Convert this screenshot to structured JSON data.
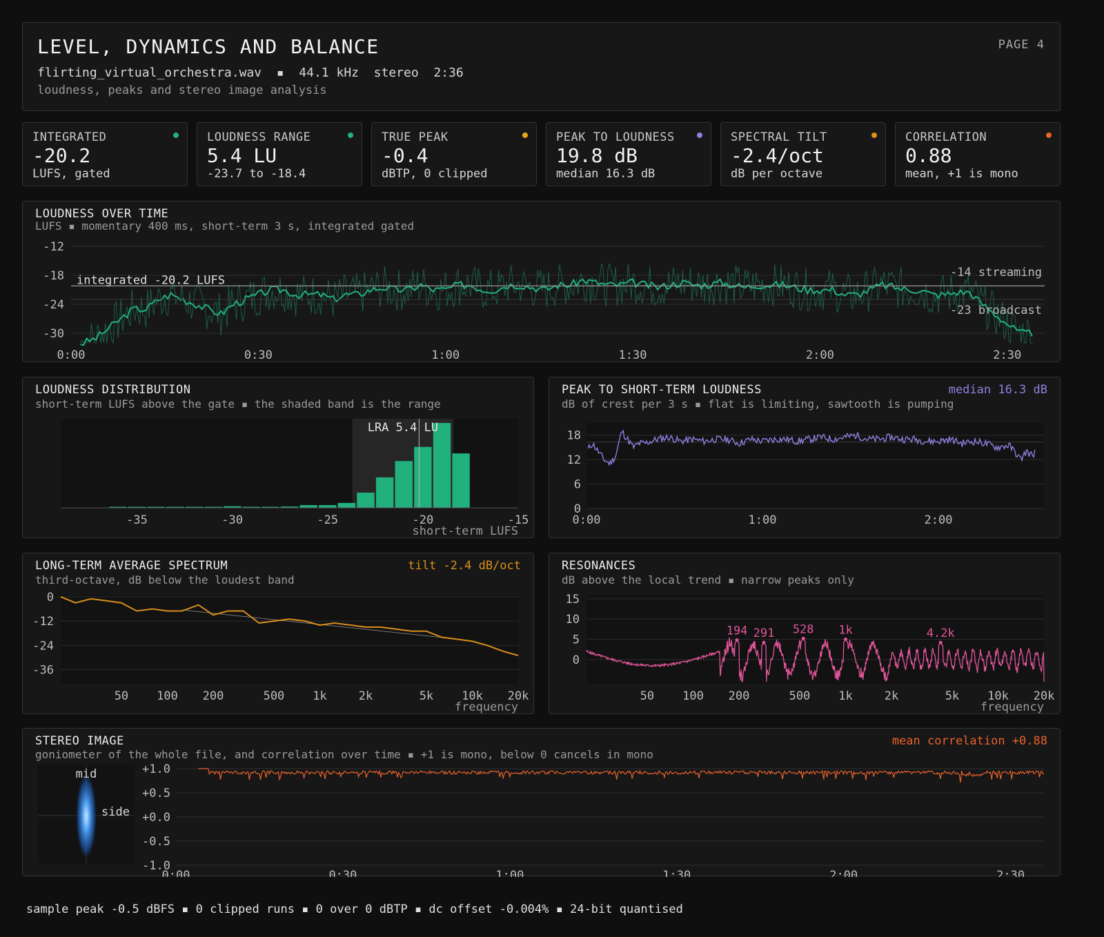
{
  "header": {
    "title": "LEVEL, DYNAMICS AND BALANCE",
    "file_line": "flirting_virtual_orchestra.wav  ▪  44.1 kHz  stereo  2:36",
    "subtitle": "loudness, peaks and stereo image analysis",
    "page": "PAGE 4"
  },
  "cards": [
    {
      "label": "INTEGRATED",
      "value": "-20.2",
      "note": "LUFS, gated",
      "color": "#22b07d"
    },
    {
      "label": "LOUDNESS RANGE",
      "value": "5.4 LU",
      "note": "-23.7 to -18.4",
      "color": "#22b07d"
    },
    {
      "label": "TRUE PEAK",
      "value": "-0.4",
      "note": "dBTP, 0 clipped",
      "color": "#e6a817"
    },
    {
      "label": "PEAK TO LOUDNESS",
      "value": "19.8 dB",
      "note": "median 16.3 dB",
      "color": "#8f80e0"
    },
    {
      "label": "SPECTRAL TILT",
      "value": "-2.4/oct",
      "note": "dB per octave",
      "color": "#d9901a"
    },
    {
      "label": "CORRELATION",
      "value": "0.88",
      "note": "mean, +1 is mono",
      "color": "#e8622c"
    }
  ],
  "panels": {
    "loudness_time": {
      "title": "LOUDNESS OVER TIME",
      "subtitle": "LUFS ▪ momentary 400 ms, short-term 3 s, integrated gated"
    },
    "distribution": {
      "title": "LOUDNESS DISTRIBUTION",
      "subtitle": "short-term LUFS above the gate ▪ the shaded band is the range"
    },
    "plr": {
      "title": "PEAK TO SHORT-TERM LOUDNESS",
      "subtitle": "dB of crest per 3 s ▪ flat is limiting, sawtooth is pumping",
      "right": "median 16.3 dB"
    },
    "ltas": {
      "title": "LONG-TERM AVERAGE SPECTRUM",
      "subtitle": "third-octave, dB below the loudest band",
      "right": "tilt -2.4 dB/oct"
    },
    "resonances": {
      "title": "RESONANCES",
      "subtitle": "dB above the local trend ▪ narrow peaks only"
    },
    "stereo": {
      "title": "STEREO IMAGE",
      "subtitle": "goniometer of the whole file, and correlation over time ▪ +1 is mono, below 0 cancels in mono",
      "right": "mean correlation +0.88"
    }
  },
  "colors": {
    "green": "#22b07d",
    "purple": "#8f80e0",
    "orange": "#d9901a",
    "pink": "#e0559a",
    "red": "#e8622c",
    "blue": "#3a8fe8"
  },
  "footer": "sample peak -0.5 dBFS ▪ 0 clipped runs ▪ 0 over 0 dBTP ▪ dc offset -0.004% ▪ 24-bit quantised",
  "chart_data": [
    {
      "id": "loudness_time",
      "type": "line",
      "xlim": [
        0,
        156
      ],
      "ylim": [
        -32,
        -11
      ],
      "x_ticks": [
        0,
        30,
        60,
        90,
        120,
        150
      ],
      "x_tick_labels": [
        "0:00",
        "0:30",
        "1:00",
        "1:30",
        "2:00",
        "2:30"
      ],
      "y_ticks": [
        -12,
        -18,
        -24,
        -30
      ],
      "y_tick_labels": [
        "-12",
        "-18",
        "-24",
        "-30"
      ],
      "reference_lines": [
        {
          "value": -14,
          "label": "-14 streaming"
        },
        {
          "value": -20.2,
          "label": "integrated -20.2 LUFS"
        },
        {
          "value": -23,
          "label": "-23 broadcast"
        }
      ],
      "short_term_points": [
        [
          0,
          -32
        ],
        [
          2,
          -32
        ],
        [
          4,
          -31
        ],
        [
          6,
          -29
        ],
        [
          8,
          -27
        ],
        [
          10,
          -25
        ],
        [
          12,
          -25
        ],
        [
          14,
          -23
        ],
        [
          16,
          -22
        ],
        [
          18,
          -23
        ],
        [
          20,
          -24
        ],
        [
          22,
          -25
        ],
        [
          24,
          -26
        ],
        [
          26,
          -24
        ],
        [
          28,
          -23
        ],
        [
          30,
          -22
        ],
        [
          32,
          -21
        ],
        [
          34,
          -21
        ],
        [
          36,
          -22
        ],
        [
          38,
          -22
        ],
        [
          40,
          -22
        ],
        [
          42,
          -23
        ],
        [
          44,
          -22
        ],
        [
          46,
          -22
        ],
        [
          48,
          -21
        ],
        [
          50,
          -20.5
        ],
        [
          52,
          -21
        ],
        [
          54,
          -21
        ],
        [
          56,
          -20
        ],
        [
          58,
          -21
        ],
        [
          60,
          -21
        ],
        [
          62,
          -20
        ],
        [
          64,
          -20
        ],
        [
          66,
          -21
        ],
        [
          68,
          -21
        ],
        [
          70,
          -20
        ],
        [
          72,
          -20
        ],
        [
          74,
          -20.5
        ],
        [
          76,
          -21
        ],
        [
          78,
          -20
        ],
        [
          80,
          -20
        ],
        [
          82,
          -19
        ],
        [
          84,
          -19.5
        ],
        [
          86,
          -20
        ],
        [
          88,
          -20
        ],
        [
          90,
          -19.5
        ],
        [
          92,
          -20
        ],
        [
          94,
          -20.5
        ],
        [
          96,
          -20
        ],
        [
          98,
          -19.5
        ],
        [
          100,
          -20
        ],
        [
          102,
          -20
        ],
        [
          104,
          -19.5
        ],
        [
          106,
          -20
        ],
        [
          108,
          -20.5
        ],
        [
          110,
          -20
        ],
        [
          112,
          -20
        ],
        [
          114,
          -20
        ],
        [
          116,
          -20.5
        ],
        [
          118,
          -21
        ],
        [
          120,
          -21
        ],
        [
          122,
          -21
        ],
        [
          124,
          -22
        ],
        [
          126,
          -22
        ],
        [
          128,
          -21
        ],
        [
          130,
          -20
        ],
        [
          132,
          -20.5
        ],
        [
          134,
          -21
        ],
        [
          136,
          -21
        ],
        [
          138,
          -22
        ],
        [
          140,
          -22
        ],
        [
          142,
          -21.5
        ],
        [
          144,
          -21.5
        ],
        [
          146,
          -24
        ],
        [
          148,
          -26
        ],
        [
          150,
          -28
        ],
        [
          152,
          -30
        ],
        [
          154,
          -30
        ]
      ],
      "momentary_range_lufs": [
        -32,
        -15
      ]
    },
    {
      "id": "distribution",
      "type": "bar",
      "xlim": [
        -39,
        -15
      ],
      "x_ticks": [
        -35,
        -30,
        -25,
        -20,
        -15
      ],
      "x_tick_labels": [
        "-35",
        "-30",
        "-25",
        "-20",
        "-15"
      ],
      "xlabel": "short-term LUFS",
      "shaded_band": [
        -23.7,
        -18.4
      ],
      "band_label": "LRA 5.4 LU",
      "integrated": -20.2,
      "bins_center": [
        -36,
        -35,
        -34,
        -33,
        -32,
        -31,
        -30,
        -29,
        -28,
        -27,
        -26,
        -25,
        -24,
        -23,
        -22,
        -21,
        -20,
        -19,
        -18
      ],
      "counts": [
        0.5,
        0.8,
        0.5,
        0.3,
        0.3,
        0.3,
        1.5,
        0.8,
        0.5,
        1.2,
        2.5,
        2.5,
        4.5,
        14,
        28,
        43,
        56,
        78,
        50
      ]
    },
    {
      "id": "plr",
      "type": "line",
      "xlim": [
        0,
        156
      ],
      "ylim": [
        0,
        21
      ],
      "x_ticks": [
        0,
        60,
        120
      ],
      "x_tick_labels": [
        "0:00",
        "1:00",
        "2:00"
      ],
      "y_ticks": [
        0,
        6,
        12,
        18
      ],
      "y_tick_labels": [
        "0",
        "6",
        "12",
        "18"
      ],
      "median": 16.3,
      "points": [
        [
          0,
          14
        ],
        [
          2,
          16
        ],
        [
          4,
          14
        ],
        [
          6,
          12
        ],
        [
          8,
          11
        ],
        [
          10,
          13
        ],
        [
          12,
          19
        ],
        [
          14,
          17
        ],
        [
          16,
          15
        ],
        [
          18,
          16
        ],
        [
          20,
          16
        ],
        [
          24,
          17
        ],
        [
          28,
          17.5
        ],
        [
          32,
          16.5
        ],
        [
          36,
          17
        ],
        [
          40,
          16.5
        ],
        [
          44,
          17
        ],
        [
          48,
          17
        ],
        [
          52,
          16
        ],
        [
          56,
          17
        ],
        [
          60,
          16.5
        ],
        [
          64,
          17
        ],
        [
          68,
          17
        ],
        [
          72,
          16.5
        ],
        [
          76,
          17
        ],
        [
          80,
          17.5
        ],
        [
          84,
          17
        ],
        [
          88,
          17.5
        ],
        [
          92,
          18
        ],
        [
          96,
          17
        ],
        [
          100,
          17
        ],
        [
          104,
          17.5
        ],
        [
          108,
          17
        ],
        [
          112,
          17
        ],
        [
          116,
          16.5
        ],
        [
          120,
          16.5
        ],
        [
          124,
          17
        ],
        [
          128,
          16
        ],
        [
          132,
          16.5
        ],
        [
          136,
          16
        ],
        [
          140,
          15
        ],
        [
          144,
          15.5
        ],
        [
          146,
          14
        ],
        [
          148,
          12
        ],
        [
          150,
          14
        ],
        [
          152,
          13
        ],
        [
          153,
          14
        ]
      ]
    },
    {
      "id": "ltas",
      "type": "line",
      "x_log": true,
      "xlim": [
        20,
        20000
      ],
      "ylim": [
        -43,
        1
      ],
      "x_ticks": [
        50,
        100,
        200,
        500,
        1000,
        2000,
        5000,
        10000,
        20000
      ],
      "x_tick_labels": [
        "50",
        "100",
        "200",
        "500",
        "1k",
        "2k",
        "5k",
        "10k",
        "20k"
      ],
      "xlabel": "frequency",
      "y_ticks": [
        0,
        -12,
        -24,
        -36
      ],
      "y_tick_labels": [
        "0",
        "-12",
        "-24",
        "-36"
      ],
      "tilt_db_per_oct": -2.4,
      "freqs": [
        20,
        25,
        31.5,
        40,
        50,
        63,
        80,
        100,
        125,
        160,
        200,
        250,
        315,
        400,
        500,
        630,
        800,
        1000,
        1250,
        1600,
        2000,
        2500,
        3150,
        4000,
        5000,
        6300,
        8000,
        10000,
        12500,
        16000,
        20000
      ],
      "values": [
        0,
        -3,
        -1,
        -2,
        -3,
        -7,
        -6,
        -7,
        -7,
        -4,
        -9,
        -7,
        -7,
        -13,
        -12,
        -11,
        -12,
        -14,
        -13,
        -14,
        -15,
        -15,
        -16,
        -17,
        -17,
        -20,
        -21,
        -22,
        -24,
        -27,
        -29
      ]
    },
    {
      "id": "resonances",
      "type": "line",
      "x_log": true,
      "xlim": [
        20,
        20000
      ],
      "ylim": [
        -6,
        16
      ],
      "x_ticks": [
        50,
        100,
        200,
        500,
        1000,
        2000,
        5000,
        10000,
        20000
      ],
      "x_tick_labels": [
        "50",
        "100",
        "200",
        "500",
        "1k",
        "2k",
        "5k",
        "10k",
        "20k"
      ],
      "xlabel": "frequency",
      "y_ticks": [
        0,
        5,
        10,
        15
      ],
      "y_tick_labels": [
        "0",
        "5",
        "10",
        "15"
      ],
      "peaks": [
        {
          "freq": 194,
          "db": 4.8,
          "label": "194"
        },
        {
          "freq": 291,
          "db": 4.2,
          "label": "291"
        },
        {
          "freq": 528,
          "db": 5.2,
          "label": "528"
        },
        {
          "freq": 1000,
          "db": 5.0,
          "label": "1k"
        },
        {
          "freq": 4200,
          "db": 4.2,
          "label": "4.2k"
        }
      ]
    },
    {
      "id": "stereo",
      "type": "line",
      "xlim": [
        0,
        156
      ],
      "ylim": [
        -1,
        1
      ],
      "x_ticks": [
        0,
        30,
        60,
        90,
        120,
        150
      ],
      "x_tick_labels": [
        "0:00",
        "0:30",
        "1:00",
        "1:30",
        "2:00",
        "2:30"
      ],
      "y_ticks": [
        1,
        0.5,
        0,
        -0.5,
        -1
      ],
      "y_tick_labels": [
        "+1.0",
        "+0.5",
        "+0.0",
        "-0.5",
        "-1.0"
      ],
      "mean": 0.88,
      "goniometer_labels": [
        "mid",
        "side"
      ]
    }
  ]
}
